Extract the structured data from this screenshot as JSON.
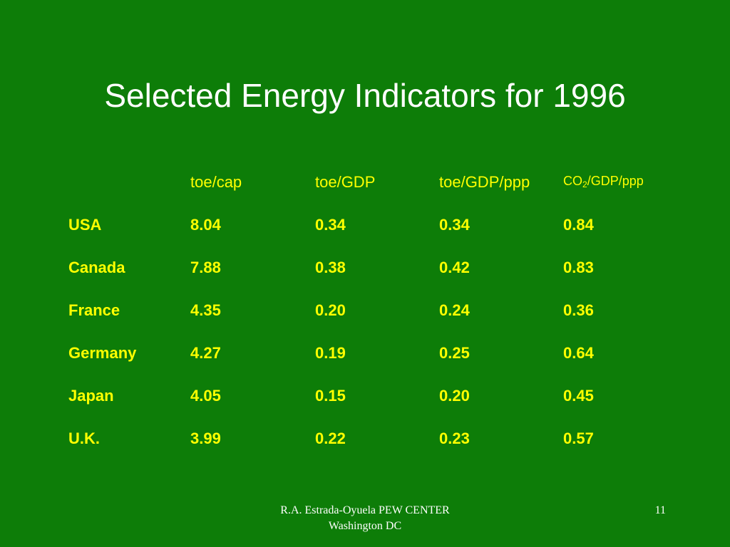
{
  "slide": {
    "title": "Selected Energy Indicators for 1996",
    "background_color": "#0d7d08",
    "text_color": "#ffff00",
    "title_color": "#ffffff"
  },
  "table": {
    "headers": [
      "",
      "toe/cap",
      "toe/GDP",
      "toe/GDP/ppp"
    ],
    "co2_header": {
      "prefix": "CO",
      "subscript": "2",
      "suffix": "/GDP/ppp"
    },
    "rows": [
      {
        "country": "USA",
        "toe_cap": "8.04",
        "toe_gdp": "0.34",
        "toe_gdp_ppp": "0.34",
        "co2_gdp_ppp": "0.84"
      },
      {
        "country": "Canada",
        "toe_cap": "7.88",
        "toe_gdp": "0.38",
        "toe_gdp_ppp": "0.42",
        "co2_gdp_ppp": "0.83"
      },
      {
        "country": "France",
        "toe_cap": "4.35",
        "toe_gdp": "0.20",
        "toe_gdp_ppp": "0.24",
        "co2_gdp_ppp": "0.36"
      },
      {
        "country": "Germany",
        "toe_cap": "4.27",
        "toe_gdp": "0.19",
        "toe_gdp_ppp": "0.25",
        "co2_gdp_ppp": "0.64"
      },
      {
        "country": "Japan",
        "toe_cap": "4.05",
        "toe_gdp": "0.15",
        "toe_gdp_ppp": "0.20",
        "co2_gdp_ppp": "0.45"
      },
      {
        "country": "U.K.",
        "toe_cap": "3.99",
        "toe_gdp": "0.22",
        "toe_gdp_ppp": "0.23",
        "co2_gdp_ppp": "0.57"
      }
    ]
  },
  "footer": {
    "line1": "R.A. Estrada-Oyuela PEW CENTER",
    "line2": "Washington DC",
    "slide_number": "11"
  }
}
